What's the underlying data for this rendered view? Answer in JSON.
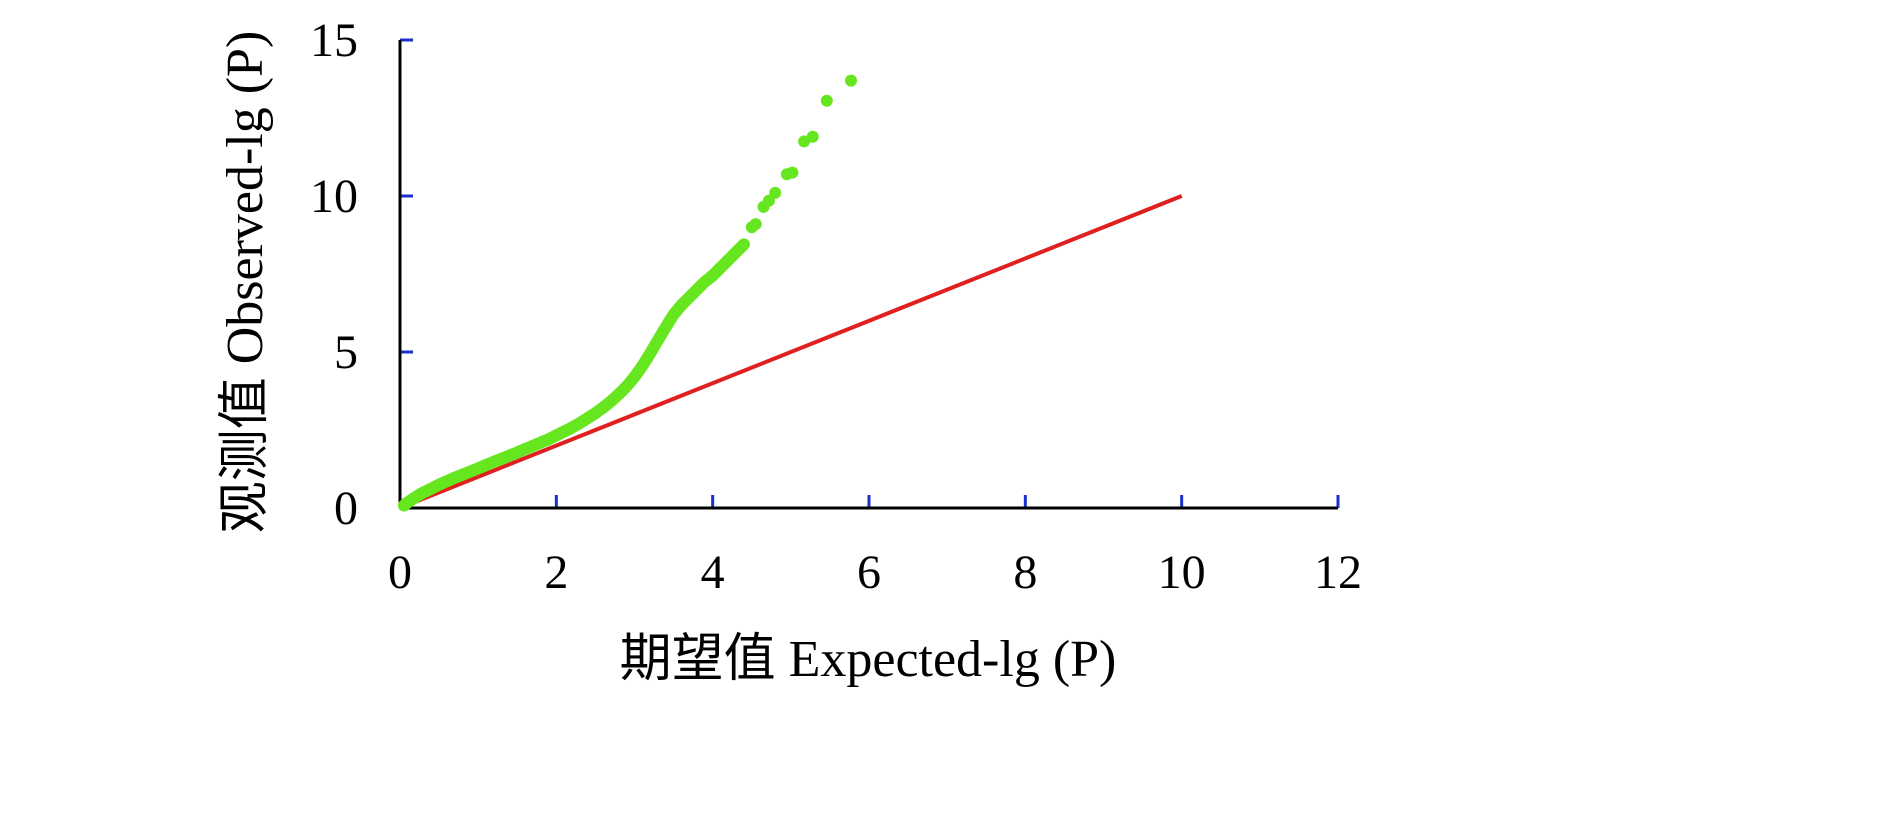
{
  "chart_data": {
    "type": "scatter",
    "xlabel": "期望值 Expected-lg (P)",
    "ylabel": "观测值 Observed-lg (P)",
    "xlim": [
      0,
      12
    ],
    "ylim": [
      0,
      15
    ],
    "x_ticks": [
      "0",
      "2",
      "4",
      "6",
      "8",
      "10",
      "12"
    ],
    "y_ticks": [
      "0",
      "5",
      "10",
      "15"
    ],
    "grid": false,
    "legend": "none",
    "colors": {
      "points": "#66e61f",
      "reference_line": "#e02020",
      "tick_marks": "#1a2fcc",
      "axis": "#000000"
    },
    "reference_line": {
      "x": [
        0,
        10
      ],
      "y": [
        0,
        10
      ]
    },
    "series": [
      {
        "x": [
          0.05,
          0.1,
          0.2,
          0.3,
          0.4,
          0.5,
          0.6,
          0.7,
          0.8,
          0.9,
          1.0,
          1.1,
          1.2,
          1.3,
          1.4,
          1.5,
          1.6,
          1.7,
          1.8,
          1.9,
          2.0,
          2.1,
          2.2,
          2.3,
          2.4,
          2.5,
          2.6,
          2.7,
          2.8,
          2.9,
          3.0,
          3.1,
          3.2,
          3.3,
          3.4,
          3.5,
          3.6,
          3.7,
          3.8,
          3.9,
          4.0,
          4.1,
          4.2,
          4.3,
          4.4,
          4.5,
          4.55,
          4.65,
          4.72,
          4.8,
          4.95,
          5.02,
          5.17,
          5.28,
          5.46,
          5.77
        ],
        "y": [
          0.08,
          0.18,
          0.35,
          0.5,
          0.62,
          0.75,
          0.86,
          0.97,
          1.07,
          1.17,
          1.27,
          1.38,
          1.48,
          1.58,
          1.68,
          1.78,
          1.89,
          1.99,
          2.1,
          2.2,
          2.33,
          2.45,
          2.58,
          2.72,
          2.88,
          3.04,
          3.22,
          3.42,
          3.65,
          3.9,
          4.2,
          4.55,
          4.95,
          5.38,
          5.8,
          6.2,
          6.5,
          6.75,
          7.0,
          7.25,
          7.45,
          7.7,
          7.95,
          8.2,
          8.45,
          9.0,
          9.1,
          9.65,
          9.85,
          10.1,
          10.7,
          10.75,
          11.75,
          11.9,
          13.05,
          13.7
        ]
      }
    ]
  }
}
